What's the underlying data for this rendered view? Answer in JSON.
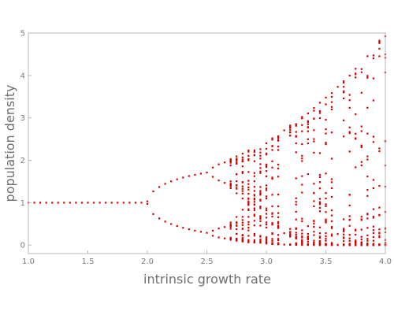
{
  "chart_data": {
    "type": "scatter",
    "title": "",
    "xlabel": "intrinsic growth rate",
    "ylabel": "population density",
    "xlim": [
      1.0,
      4.0
    ],
    "ylim": [
      -0.2,
      5.0
    ],
    "xticks": [
      "1.0",
      "1.5",
      "2.0",
      "2.5",
      "3.0",
      "3.5",
      "4.0"
    ],
    "yticks": [
      "0",
      "1",
      "2",
      "3",
      "4",
      "5"
    ],
    "grid": false,
    "legend": "none",
    "marker_color": "#d40000",
    "r_step": 0.05,
    "orbit_points_per_r": 30,
    "model": "x_next = x * exp(r * (1 - x))",
    "series": [
      {
        "r_start": 1.0,
        "r_end": 4.0
      }
    ]
  }
}
